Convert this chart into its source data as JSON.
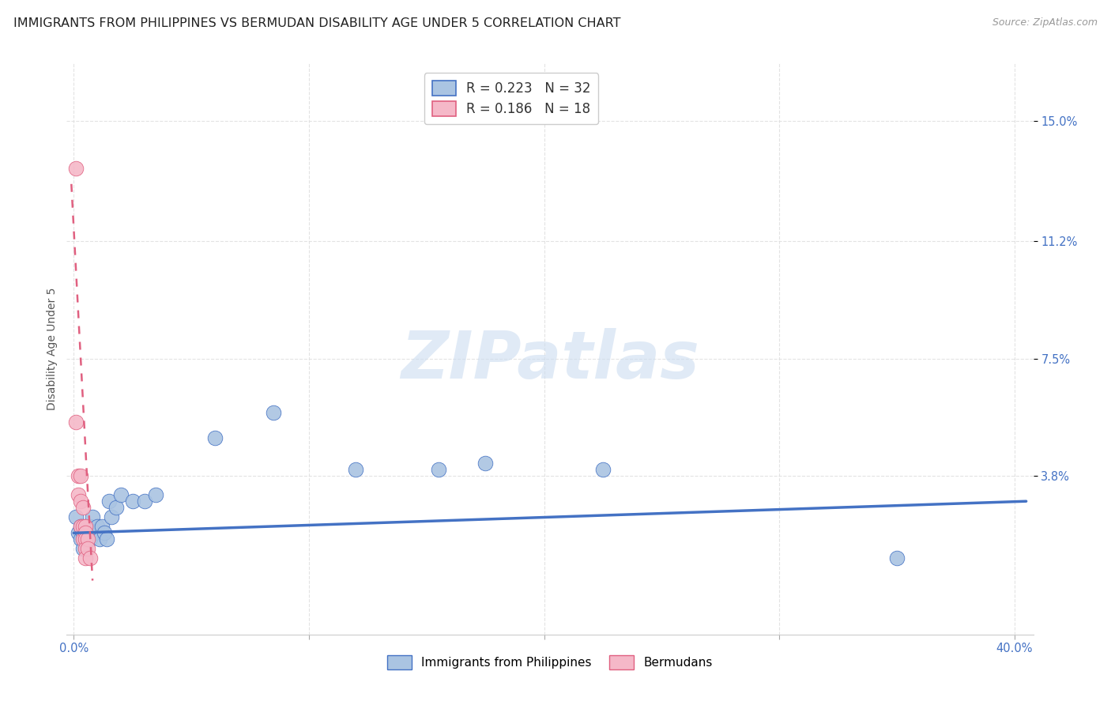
{
  "title": "IMMIGRANTS FROM PHILIPPINES VS BERMUDAN DISABILITY AGE UNDER 5 CORRELATION CHART",
  "source": "Source: ZipAtlas.com",
  "ylabel": "Disability Age Under 5",
  "ytick_labels": [
    "15.0%",
    "11.2%",
    "7.5%",
    "3.8%"
  ],
  "ytick_values": [
    0.15,
    0.112,
    0.075,
    0.038
  ],
  "xlim": [
    -0.003,
    0.408
  ],
  "ylim": [
    -0.012,
    0.168
  ],
  "blue_color": "#aac4e2",
  "blue_line_color": "#4472c4",
  "pink_color": "#f5b8c8",
  "pink_line_color": "#e06080",
  "background_color": "#ffffff",
  "watermark_text": "ZIPatlas",
  "philippines_x": [
    0.001,
    0.002,
    0.003,
    0.003,
    0.004,
    0.004,
    0.005,
    0.005,
    0.006,
    0.007,
    0.007,
    0.008,
    0.009,
    0.01,
    0.011,
    0.012,
    0.013,
    0.014,
    0.015,
    0.016,
    0.018,
    0.02,
    0.025,
    0.03,
    0.035,
    0.06,
    0.085,
    0.12,
    0.155,
    0.175,
    0.225,
    0.35
  ],
  "philippines_y": [
    0.025,
    0.02,
    0.022,
    0.018,
    0.02,
    0.015,
    0.022,
    0.018,
    0.02,
    0.022,
    0.018,
    0.025,
    0.02,
    0.022,
    0.018,
    0.022,
    0.02,
    0.018,
    0.03,
    0.025,
    0.028,
    0.032,
    0.03,
    0.03,
    0.032,
    0.05,
    0.058,
    0.04,
    0.04,
    0.042,
    0.04,
    0.012
  ],
  "bermudans_x": [
    0.001,
    0.001,
    0.002,
    0.002,
    0.003,
    0.003,
    0.003,
    0.004,
    0.004,
    0.004,
    0.005,
    0.005,
    0.005,
    0.005,
    0.005,
    0.006,
    0.006,
    0.007
  ],
  "bermudans_y": [
    0.135,
    0.055,
    0.038,
    0.032,
    0.038,
    0.03,
    0.022,
    0.028,
    0.022,
    0.018,
    0.022,
    0.02,
    0.018,
    0.015,
    0.012,
    0.018,
    0.015,
    0.012
  ],
  "blue_trend_x": [
    0.0,
    0.405
  ],
  "blue_trend_y": [
    0.02,
    0.03
  ],
  "pink_trend_x": [
    -0.001,
    0.008
  ],
  "pink_trend_y": [
    0.13,
    0.005
  ],
  "grid_color": "#e0e0e0",
  "title_fontsize": 11.5,
  "axis_label_fontsize": 10,
  "tick_fontsize": 10.5,
  "legend_fontsize": 12
}
